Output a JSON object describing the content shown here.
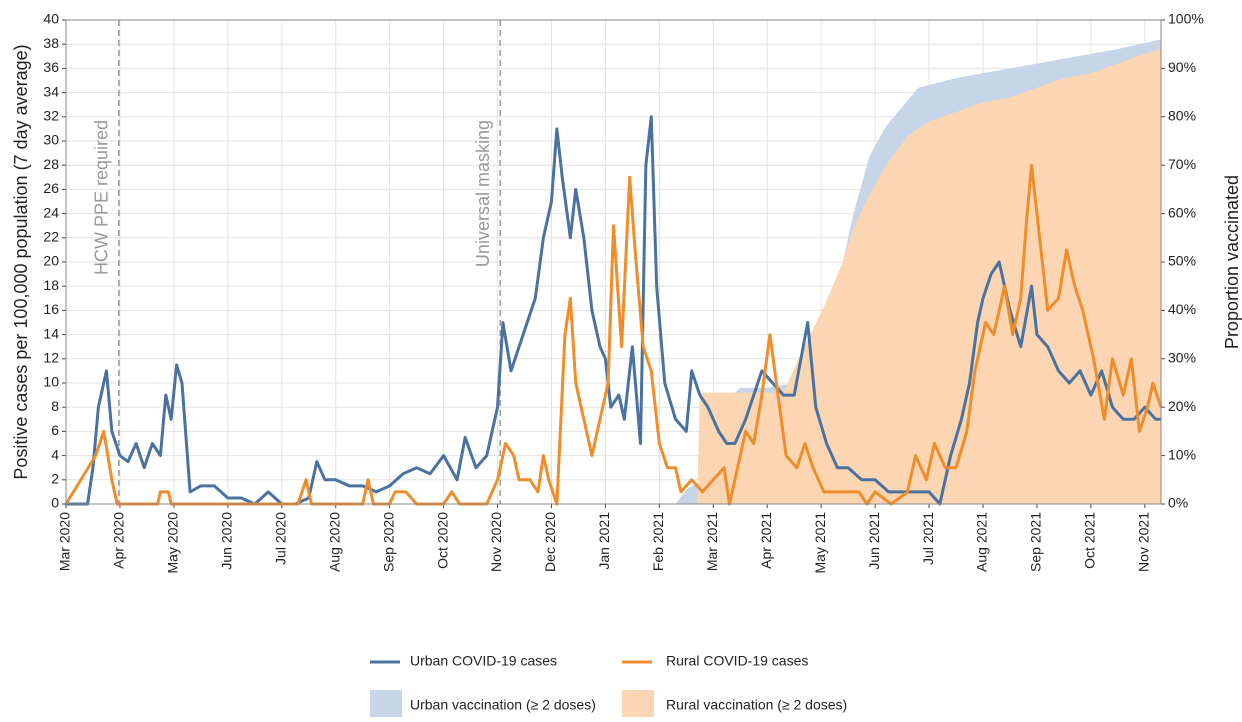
{
  "chart_data": {
    "type": "line",
    "y_label": "Positive cases per 100,000 population (7 day average)",
    "y2_label": "Proportion vaccinated",
    "xlim": [
      0,
      20.3
    ],
    "xticks": [
      {
        "value": 0,
        "label": "Mar 2020"
      },
      {
        "value": 1,
        "label": "Apr 2020"
      },
      {
        "value": 2,
        "label": "May 2020"
      },
      {
        "value": 3,
        "label": "Jun 2020"
      },
      {
        "value": 4,
        "label": "Jul 2020"
      },
      {
        "value": 5,
        "label": "Aug 2020"
      },
      {
        "value": 6,
        "label": "Sep 2020"
      },
      {
        "value": 7,
        "label": "Oct 2020"
      },
      {
        "value": 8,
        "label": "Nov 2020"
      },
      {
        "value": 9,
        "label": "Dec 2020"
      },
      {
        "value": 10,
        "label": "Jan 2021"
      },
      {
        "value": 11,
        "label": "Feb 2021"
      },
      {
        "value": 12,
        "label": "Mar 2021"
      },
      {
        "value": 13,
        "label": "Apr 2021"
      },
      {
        "value": 14,
        "label": "May 2021"
      },
      {
        "value": 15,
        "label": "Jun 2021"
      },
      {
        "value": 16,
        "label": "Jul 2021"
      },
      {
        "value": 17,
        "label": "Aug 2021"
      },
      {
        "value": 18,
        "label": "Sep 2021"
      },
      {
        "value": 19,
        "label": "Oct 2021"
      },
      {
        "value": 20,
        "label": "Nov 2021"
      }
    ],
    "ylim": [
      0,
      40
    ],
    "yticks": [
      0,
      2,
      4,
      6,
      8,
      10,
      12,
      14,
      16,
      18,
      20,
      22,
      24,
      26,
      28,
      30,
      32,
      34,
      36,
      38,
      40
    ],
    "y2lim": [
      0,
      100
    ],
    "y2ticks": [
      {
        "value": 0,
        "label": "0%"
      },
      {
        "value": 10,
        "label": "10%"
      },
      {
        "value": 20,
        "label": "20%"
      },
      {
        "value": 30,
        "label": "30%"
      },
      {
        "value": 40,
        "label": "40%"
      },
      {
        "value": 50,
        "label": "50%"
      },
      {
        "value": 60,
        "label": "60%"
      },
      {
        "value": 70,
        "label": "70%"
      },
      {
        "value": 80,
        "label": "80%"
      },
      {
        "value": 90,
        "label": "90%"
      },
      {
        "value": 100,
        "label": "100%"
      }
    ],
    "grid": true,
    "annotations": [
      {
        "text": "HCW PPE required",
        "x": 0.98
      },
      {
        "text": "Universal masking",
        "x": 8.05
      }
    ],
    "series": [
      {
        "name": "Urban vaccination (≥ 2 doses)",
        "type": "area",
        "axis": "y2",
        "color": "#c6d5e7",
        "x": [
          11.3,
          11.5,
          11.8,
          12.0,
          12.1,
          12.5,
          13.0,
          13.5,
          14.0,
          14.3,
          14.6,
          14.9,
          15.2,
          15.5,
          15.8,
          16.5,
          17.5,
          18.5,
          19.5,
          20.3
        ],
        "values": [
          0,
          3,
          5,
          9,
          20,
          24,
          24,
          25,
          35,
          45,
          60,
          72,
          78,
          82,
          86,
          88,
          90,
          92,
          94,
          96
        ]
      },
      {
        "name": "Rural vaccination (≥ 2 doses)",
        "type": "area",
        "axis": "y2",
        "color": "#fcd6b2",
        "x": [
          11.7,
          11.75,
          13.0,
          13.3,
          13.5,
          13.8,
          14.1,
          14.4,
          14.6,
          14.9,
          15.2,
          15.6,
          16.0,
          16.5,
          17.0,
          17.5,
          18.0,
          18.5,
          19.0,
          19.5,
          20.0,
          20.3
        ],
        "values": [
          0,
          23,
          23,
          23,
          28,
          35,
          42,
          50,
          57,
          64,
          70,
          76,
          79,
          81,
          83,
          84,
          86,
          88,
          89,
          91,
          93,
          94
        ]
      },
      {
        "name": "Urban COVID-19 cases",
        "type": "line",
        "color": "#4a72a0",
        "x": [
          0,
          0.25,
          0.4,
          0.5,
          0.6,
          0.75,
          0.85,
          1.0,
          1.15,
          1.3,
          1.45,
          1.6,
          1.75,
          1.85,
          1.95,
          2.05,
          2.15,
          2.3,
          2.5,
          2.75,
          3.0,
          3.25,
          3.5,
          3.75,
          4.0,
          4.25,
          4.5,
          4.65,
          4.8,
          5.0,
          5.25,
          5.5,
          5.75,
          6.0,
          6.25,
          6.5,
          6.75,
          7.0,
          7.25,
          7.4,
          7.6,
          7.8,
          8.0,
          8.1,
          8.25,
          8.4,
          8.55,
          8.7,
          8.85,
          9.0,
          9.1,
          9.2,
          9.35,
          9.45,
          9.6,
          9.75,
          9.9,
          10.0,
          10.1,
          10.25,
          10.35,
          10.5,
          10.65,
          10.75,
          10.85,
          10.95,
          11.1,
          11.3,
          11.5,
          11.6,
          11.75,
          11.9,
          12.1,
          12.25,
          12.4,
          12.6,
          12.75,
          12.9,
          13.1,
          13.3,
          13.5,
          13.75,
          13.9,
          14.1,
          14.3,
          14.5,
          14.75,
          15.0,
          15.25,
          15.5,
          15.75,
          16.0,
          16.2,
          16.4,
          16.6,
          16.75,
          16.9,
          17.0,
          17.15,
          17.3,
          17.5,
          17.7,
          17.9,
          18.0,
          18.2,
          18.4,
          18.6,
          18.8,
          19.0,
          19.2,
          19.4,
          19.6,
          19.8,
          20.0,
          20.2,
          20.3
        ],
        "values": [
          0,
          0,
          0,
          3,
          8,
          11,
          6,
          4,
          3.5,
          5,
          3,
          5,
          4,
          9,
          7,
          11.5,
          10,
          1,
          1.5,
          1.5,
          0.5,
          0.5,
          0,
          1,
          0,
          0,
          0.5,
          3.5,
          2,
          2,
          1.5,
          1.5,
          1,
          1.5,
          2.5,
          3,
          2.5,
          4,
          2,
          5.5,
          3,
          4,
          8,
          15,
          11,
          13,
          15,
          17,
          22,
          25,
          31,
          27,
          22,
          26,
          22,
          16,
          13,
          12,
          8,
          9,
          7,
          13,
          5,
          28,
          32,
          18,
          10,
          7,
          6,
          11,
          9,
          8,
          6,
          5,
          5,
          7,
          9,
          11,
          10,
          9,
          9,
          15,
          8,
          5,
          3,
          3,
          2,
          2,
          1,
          1,
          1,
          1,
          0,
          4,
          7,
          10,
          15,
          17,
          19,
          20,
          16,
          13,
          18,
          14,
          13,
          11,
          10,
          11,
          9,
          11,
          8,
          7,
          7,
          8,
          7,
          7
        ]
      },
      {
        "name": "Rural COVID-19 cases",
        "type": "line",
        "color": "#f08c2a",
        "x": [
          0,
          0.55,
          0.7,
          0.85,
          0.95,
          1.7,
          1.75,
          1.9,
          1.95,
          3.0,
          4.3,
          4.45,
          4.55,
          5.0,
          5.5,
          5.6,
          5.7,
          6.0,
          6.1,
          6.3,
          6.5,
          7.0,
          7.15,
          7.3,
          7.8,
          7.9,
          8.0,
          8.15,
          8.3,
          8.4,
          8.6,
          8.75,
          8.85,
          8.95,
          9.1,
          9.25,
          9.35,
          9.45,
          9.6,
          9.75,
          9.9,
          10.05,
          10.15,
          10.3,
          10.45,
          10.55,
          10.7,
          10.85,
          11.0,
          11.15,
          11.3,
          11.4,
          11.6,
          11.8,
          12.0,
          12.2,
          12.3,
          12.45,
          12.6,
          12.75,
          12.9,
          13.05,
          13.2,
          13.35,
          13.55,
          13.7,
          13.85,
          14.05,
          14.2,
          14.5,
          14.7,
          14.85,
          15.0,
          15.3,
          15.6,
          15.75,
          15.95,
          16.1,
          16.3,
          16.5,
          16.7,
          16.85,
          17.05,
          17.2,
          17.4,
          17.55,
          17.7,
          17.8,
          17.9,
          18.05,
          18.2,
          18.4,
          18.55,
          18.7,
          18.85,
          19.05,
          19.25,
          19.4,
          19.6,
          19.75,
          19.9,
          20.05,
          20.15,
          20.3
        ],
        "values": [
          0,
          4,
          6,
          2,
          0,
          0,
          1,
          1,
          0,
          0,
          0,
          2,
          0,
          0,
          0,
          2,
          0,
          0,
          1,
          1,
          0,
          0,
          1,
          0,
          0,
          1,
          2,
          5,
          4,
          2,
          2,
          1,
          4,
          2,
          0,
          14,
          17,
          10,
          7,
          4,
          7,
          10,
          23,
          13,
          27,
          21,
          13,
          11,
          5,
          3,
          3,
          1,
          2,
          1,
          2,
          3,
          0,
          3,
          6,
          5,
          9,
          14,
          9,
          4,
          3,
          5,
          3,
          1,
          1,
          1,
          1,
          0,
          1,
          0,
          1,
          4,
          2,
          5,
          3,
          3,
          6,
          11,
          15,
          14,
          18,
          14,
          17,
          23,
          28,
          22,
          16,
          17,
          21,
          18,
          16,
          12,
          7,
          12,
          9,
          12,
          6,
          8,
          10,
          8
        ]
      }
    ],
    "legend_order": [
      2,
      0,
      3,
      1
    ]
  }
}
